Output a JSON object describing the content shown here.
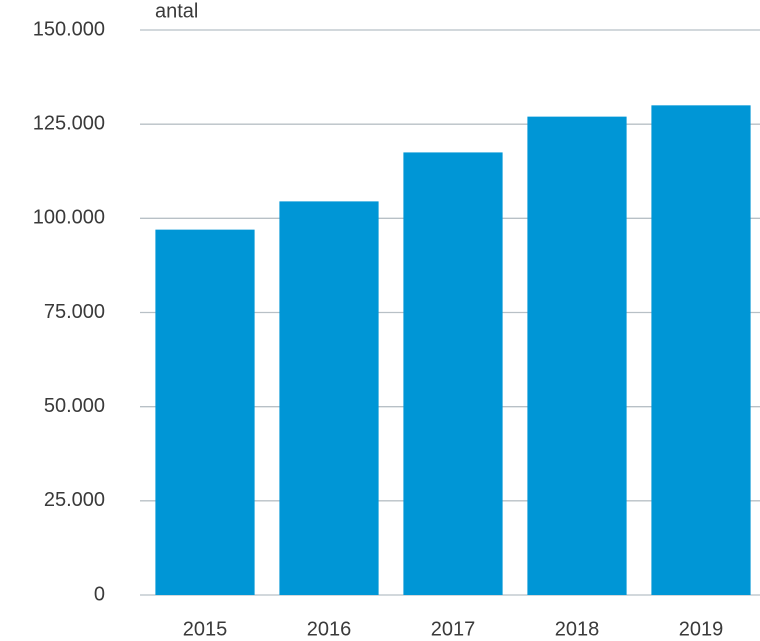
{
  "chart_data": {
    "type": "bar",
    "y_label": "antal",
    "categories": [
      "2015",
      "2016",
      "2017",
      "2018",
      "2019"
    ],
    "values": [
      97000,
      104500,
      117500,
      127000,
      130000
    ],
    "color": "#0096d6",
    "ylim": [
      0,
      150000
    ],
    "yticks": [
      0,
      {
        "value": 25000,
        "label": "25.000"
      },
      {
        "value": 50000,
        "label": "50.000"
      },
      {
        "value": 75000,
        "label": "75.000"
      },
      {
        "value": 100000,
        "label": "100.000"
      },
      {
        "value": 125000,
        "label": "125.000"
      },
      {
        "value": 150000,
        "label": "150.000"
      }
    ],
    "grid": true
  }
}
